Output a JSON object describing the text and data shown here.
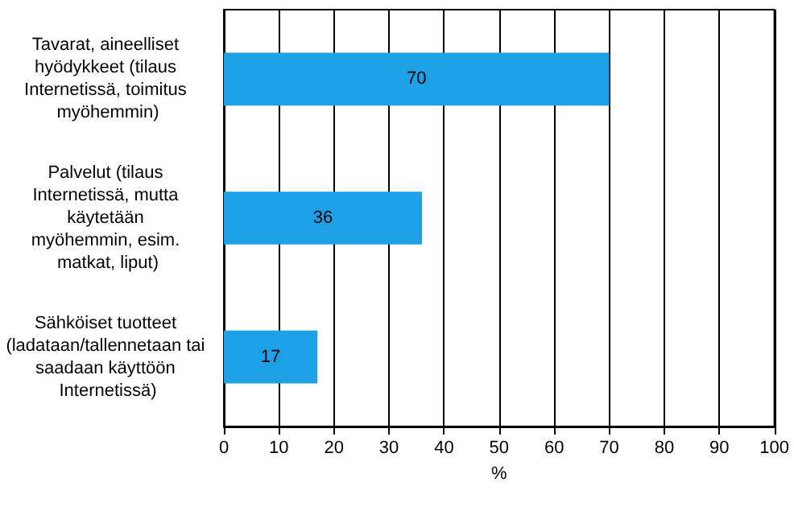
{
  "chart_data": {
    "type": "bar",
    "orientation": "horizontal",
    "categories": [
      "Tavarat, aineelliset hyödykkeet (tilaus Internetissä, toimitus myöhemmin)",
      "Palvelut (tilaus Internetissä, mutta käytetään myöhemmin, esim. matkat, liput)",
      "Sähköiset tuotteet (ladataan/tallennetaan tai saadaan käyttöön Internetissä)"
    ],
    "values": [
      70,
      36,
      17
    ],
    "color": "#1ea0e6",
    "data_labels": true,
    "xlim": [
      0,
      100
    ],
    "xticks": [
      0,
      10,
      20,
      30,
      40,
      50,
      60,
      70,
      80,
      90,
      100
    ],
    "xlabel": "%",
    "grid": "x"
  }
}
